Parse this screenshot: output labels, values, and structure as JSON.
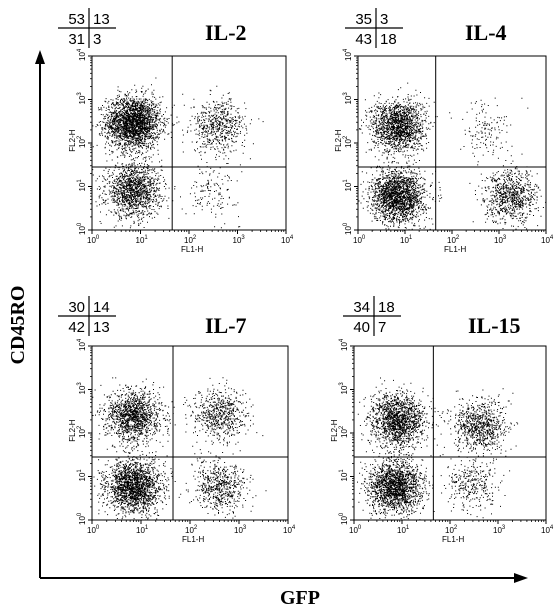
{
  "figure": {
    "y_axis_label": "CD45RO",
    "x_axis_label": "GFP"
  },
  "chart_data": [
    {
      "type": "scatter",
      "title": "IL-2",
      "xlabel": "FL1-H",
      "ylabel": "FL2-H",
      "x_scale": "log",
      "y_scale": "log",
      "xlim": [
        1,
        10000
      ],
      "ylim": [
        1,
        10000
      ],
      "x_ticks": [
        "10",
        "10",
        "10",
        "10",
        "10"
      ],
      "x_tick_exponents": [
        "0",
        "1",
        "2",
        "3",
        "4"
      ],
      "y_ticks": [
        "10",
        "10",
        "10",
        "10",
        "10"
      ],
      "y_tick_exponents": [
        "0",
        "1",
        "2",
        "3",
        "4"
      ],
      "gate_x": 45,
      "gate_y": 28,
      "quadrants": {
        "upper_left": "53",
        "upper_right": "13",
        "lower_left": "31",
        "lower_right": "3"
      },
      "populations": [
        {
          "x": 7,
          "y": 300,
          "weight": 53
        },
        {
          "x": 7,
          "y": 8,
          "weight": 31
        },
        {
          "x": 400,
          "y": 250,
          "weight": 13
        },
        {
          "x": 300,
          "y": 8,
          "weight": 3
        }
      ]
    },
    {
      "type": "scatter",
      "title": "IL-4",
      "xlabel": "FL1-H",
      "ylabel": "FL2-H",
      "x_scale": "log",
      "y_scale": "log",
      "xlim": [
        1,
        10000
      ],
      "ylim": [
        1,
        10000
      ],
      "x_ticks": [
        "10",
        "10",
        "10",
        "10",
        "10"
      ],
      "x_tick_exponents": [
        "0",
        "1",
        "2",
        "3",
        "4"
      ],
      "y_ticks": [
        "10",
        "10",
        "10",
        "10",
        "10"
      ],
      "y_tick_exponents": [
        "0",
        "1",
        "2",
        "3",
        "4"
      ],
      "gate_x": 45,
      "gate_y": 28,
      "quadrants": {
        "upper_left": "35",
        "upper_right": "3",
        "lower_left": "43",
        "lower_right": "18"
      },
      "populations": [
        {
          "x": 7,
          "y": 250,
          "weight": 35
        },
        {
          "x": 7,
          "y": 6,
          "weight": 43
        },
        {
          "x": 500,
          "y": 200,
          "weight": 3
        },
        {
          "x": 1800,
          "y": 6,
          "weight": 18
        }
      ]
    },
    {
      "type": "scatter",
      "title": "IL-7",
      "xlabel": "FL1-H",
      "ylabel": "FL2-H",
      "x_scale": "log",
      "y_scale": "log",
      "xlim": [
        1,
        10000
      ],
      "ylim": [
        1,
        10000
      ],
      "x_ticks": [
        "10",
        "10",
        "10",
        "10",
        "10"
      ],
      "x_tick_exponents": [
        "0",
        "1",
        "2",
        "3",
        "4"
      ],
      "y_ticks": [
        "10",
        "10",
        "10",
        "10",
        "10"
      ],
      "y_tick_exponents": [
        "0",
        "1",
        "2",
        "3",
        "4"
      ],
      "gate_x": 45,
      "gate_y": 28,
      "quadrants": {
        "upper_left": "30",
        "upper_right": "14",
        "lower_left": "42",
        "lower_right": "13"
      },
      "populations": [
        {
          "x": 7,
          "y": 250,
          "weight": 30
        },
        {
          "x": 7,
          "y": 6,
          "weight": 42
        },
        {
          "x": 400,
          "y": 250,
          "weight": 14
        },
        {
          "x": 400,
          "y": 6,
          "weight": 13
        }
      ]
    },
    {
      "type": "scatter",
      "title": "IL-15",
      "xlabel": "FL1-H",
      "ylabel": "FL2-H",
      "x_scale": "log",
      "y_scale": "log",
      "xlim": [
        1,
        10000
      ],
      "ylim": [
        1,
        10000
      ],
      "x_ticks": [
        "10",
        "10",
        "10",
        "10",
        "10"
      ],
      "x_tick_exponents": [
        "0",
        "1",
        "2",
        "3",
        "4"
      ],
      "y_ticks": [
        "10",
        "10",
        "10",
        "10",
        "10"
      ],
      "y_tick_exponents": [
        "0",
        "1",
        "2",
        "3",
        "4"
      ],
      "gate_x": 45,
      "gate_y": 28,
      "quadrants": {
        "upper_left": "34",
        "upper_right": "18",
        "lower_left": "40",
        "lower_right": "7"
      },
      "populations": [
        {
          "x": 8,
          "y": 200,
          "weight": 34
        },
        {
          "x": 7,
          "y": 6,
          "weight": 40
        },
        {
          "x": 400,
          "y": 150,
          "weight": 18
        },
        {
          "x": 300,
          "y": 6,
          "weight": 7
        }
      ]
    }
  ]
}
